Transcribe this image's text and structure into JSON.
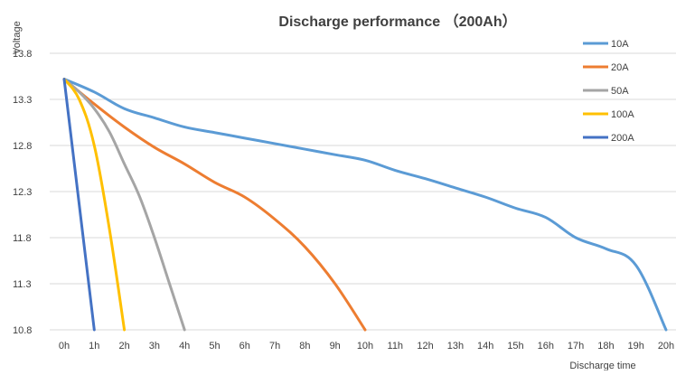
{
  "chart_data": {
    "type": "line",
    "title": "Discharge performance  （200Ah）",
    "xlabel": "Discharge time",
    "ylabel": "Voltage",
    "categories": [
      "0h",
      "1h",
      "2h",
      "3h",
      "4h",
      "5h",
      "6h",
      "7h",
      "8h",
      "9h",
      "10h",
      "11h",
      "12h",
      "13h",
      "14h",
      "15h",
      "16h",
      "17h",
      "18h",
      "19h",
      "20h"
    ],
    "yticks": [
      "13.8",
      "13.3",
      "12.8",
      "12.3",
      "11.8",
      "11.3",
      "10.8"
    ],
    "ylim": [
      10.8,
      13.8
    ],
    "xlim": [
      0,
      20
    ],
    "grid": true,
    "legend_position": "right",
    "series": [
      {
        "name": "10A",
        "color": "#5B9BD5",
        "x": [
          0,
          1,
          2,
          3,
          4,
          5,
          6,
          7,
          8,
          9,
          10,
          11,
          12,
          13,
          14,
          15,
          16,
          17,
          18,
          19,
          20
        ],
        "y": [
          13.52,
          13.38,
          13.2,
          13.1,
          13.0,
          12.94,
          12.88,
          12.82,
          12.76,
          12.7,
          12.64,
          12.53,
          12.44,
          12.34,
          12.24,
          12.12,
          12.02,
          11.8,
          11.68,
          11.5,
          10.8
        ]
      },
      {
        "name": "20A",
        "color": "#ED7D31",
        "x": [
          0,
          1,
          2,
          3,
          4,
          5,
          6,
          7,
          8,
          9,
          10
        ],
        "y": [
          13.52,
          13.25,
          13.0,
          12.78,
          12.6,
          12.4,
          12.24,
          12.0,
          11.7,
          11.3,
          10.8
        ]
      },
      {
        "name": "50A",
        "color": "#A5A5A5",
        "x": [
          0,
          0.5,
          1,
          1.5,
          2,
          2.5,
          3,
          3.5,
          4
        ],
        "y": [
          13.52,
          13.38,
          13.2,
          12.95,
          12.6,
          12.25,
          11.8,
          11.3,
          10.8
        ]
      },
      {
        "name": "100A",
        "color": "#FFC000",
        "x": [
          0,
          0.5,
          1,
          1.5,
          2
        ],
        "y": [
          13.52,
          13.3,
          12.8,
          11.9,
          10.8
        ]
      },
      {
        "name": "200A",
        "color": "#4472C4",
        "x": [
          0,
          1
        ],
        "y": [
          13.52,
          10.8
        ]
      }
    ]
  }
}
